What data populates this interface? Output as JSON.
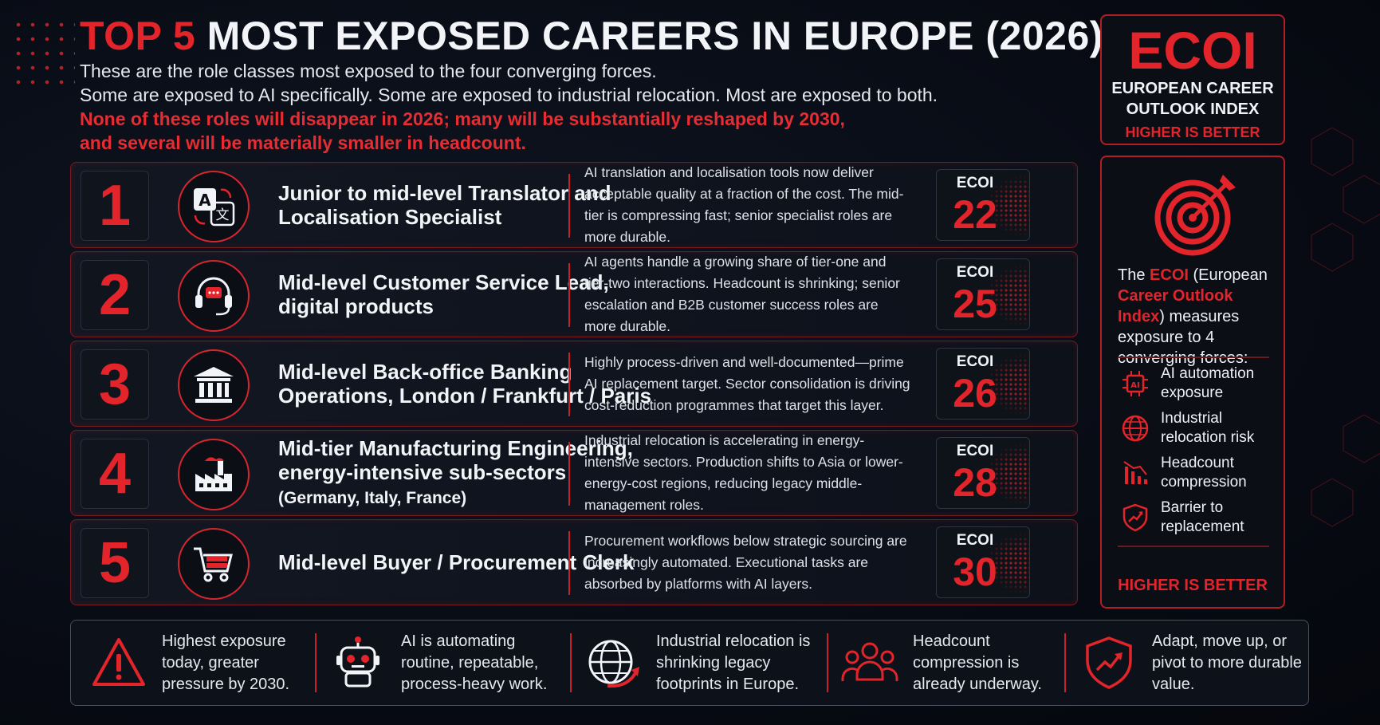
{
  "header": {
    "title_accent": "TOP 5",
    "title_rest": "MOST EXPOSED CAREERS IN EUROPE (2026)",
    "line1": "These are the role classes most exposed to the four converging forces.",
    "line2": "Some are exposed to AI specifically. Some are exposed to industrial relocation. Most are exposed to both.",
    "line3": "None of these roles will disappear in 2026; many will be substantially reshaped by 2030,",
    "line4": "and several will be materially smaller in headcount."
  },
  "rows": [
    {
      "rank": "1",
      "icon": "translate-icon",
      "title_main": "Junior to mid-level Translator and Localisation Specialist",
      "title_small": "",
      "desc": "AI translation and localisation tools now deliver acceptable quality at a fraction of the cost. The mid-tier is compressing fast; senior specialist roles are more durable.",
      "ecoi_label": "ECOI",
      "ecoi_score": "22"
    },
    {
      "rank": "2",
      "icon": "headset-icon",
      "title_main": "Mid-level Customer Service Lead, digital products",
      "title_small": "",
      "desc": "AI agents handle a growing share of tier-one and tier-two interactions. Headcount is shrinking; senior escalation and B2B customer success roles are more durable.",
      "ecoi_label": "ECOI",
      "ecoi_score": "25"
    },
    {
      "rank": "3",
      "icon": "bank-icon",
      "title_main": "Mid-level Back-office Banking Operations, London / Frankfurt / Paris",
      "title_small": "",
      "desc": "Highly process-driven and well-documented—prime AI replacement target. Sector consolidation is driving cost-reduction programmes that target this layer.",
      "ecoi_label": "ECOI",
      "ecoi_score": "26"
    },
    {
      "rank": "4",
      "icon": "factory-icon",
      "title_main": "Mid-tier Manufacturing Engineering, energy-intensive sub-sectors",
      "title_small": "(Germany, Italy, France)",
      "desc": "Industrial relocation is accelerating in energy-intensive sectors. Production shifts to Asia or lower-energy-cost regions, reducing legacy middle-management roles.",
      "ecoi_label": "ECOI",
      "ecoi_score": "28"
    },
    {
      "rank": "5",
      "icon": "shopping-cart-icon",
      "title_main": "Mid-level Buyer / Procurement Clerk",
      "title_small": "",
      "desc": "Procurement workflows below strategic sourcing are increasingly automated. Executional tasks are absorbed by platforms with AI layers.",
      "ecoi_label": "ECOI",
      "ecoi_score": "30"
    }
  ],
  "side_top": {
    "big": "ECOI",
    "l1": "EUROPEAN CAREER",
    "l2": "OUTLOOK INDEX",
    "higher": "HIGHER IS BETTER"
  },
  "side_main": {
    "t1": "The ",
    "t2": "ECOI",
    "t3": " (European ",
    "t4": "Career Outlook Index",
    "t5": ") measures exposure to 4 converging forces:",
    "forces": [
      {
        "icon": "ai-chip-icon",
        "label": "AI automation exposure"
      },
      {
        "icon": "globe-icon",
        "label": "Industrial relocation risk"
      },
      {
        "icon": "declining-chart-icon",
        "label": "Headcount compression"
      },
      {
        "icon": "shield-icon",
        "label": "Barrier to replacement"
      }
    ],
    "higher": "HIGHER IS BETTER"
  },
  "bottom": [
    {
      "icon": "warning-icon",
      "text": "Highest exposure today, greater pressure by 2030."
    },
    {
      "icon": "robot-icon",
      "text": "AI is automating routine, repeatable, process-heavy work."
    },
    {
      "icon": "globe-arrow-icon",
      "text": "Industrial relocation is shrinking legacy footprints in Europe."
    },
    {
      "icon": "people-icon",
      "text": "Headcount compression is already underway."
    },
    {
      "icon": "shield-growth-icon",
      "text": "Adapt, move up, or pivot to more durable value."
    }
  ],
  "colors": {
    "accent": "#e3242b",
    "background": "#070a12",
    "text": "#f2f4f7"
  }
}
